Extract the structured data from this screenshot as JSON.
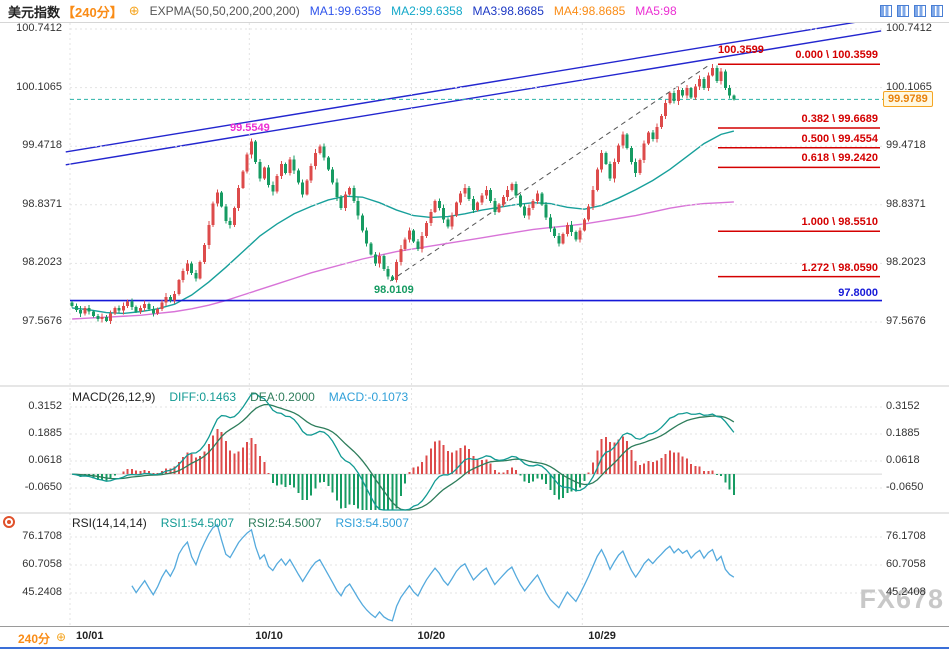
{
  "header": {
    "title": "美元指数",
    "period": "【240分】",
    "plus_icon": "⊕",
    "indicator": "EXPMA(50,50,200,200,200)",
    "ma_values": [
      {
        "label": "MA1:99.6358",
        "color": "#2f54eb"
      },
      {
        "label": "MA2:99.6358",
        "color": "#13a8c9"
      },
      {
        "label": "MA3:98.8685",
        "color": "#1d39c4"
      },
      {
        "label": "MA4:98.8685",
        "color": "#fa8c16"
      },
      {
        "label": "MA5:98",
        "color": "#eb2fd3"
      }
    ],
    "layout_icons": [
      "kline-view-icon",
      "multi-chart-icon",
      "grid-view-icon",
      "fullscreen-icon"
    ]
  },
  "macd_header": {
    "name": "MACD(26,12,9)",
    "diff": "DIFF:0.1463",
    "dea": "DEA:0.2000",
    "macd": "MACD:-0.1073"
  },
  "rsi_header": {
    "name": "RSI(14,14,14)",
    "rsi1": "RSI1:54.5007",
    "rsi2": "RSI2:54.5007",
    "rsi3": "RSI3:54.5007"
  },
  "footer": {
    "period": "240分",
    "plus": "⊕",
    "dates": [
      "10/01",
      "10/10",
      "10/20",
      "10/29"
    ],
    "tick_indices": [
      0,
      42,
      80,
      120
    ]
  },
  "watermark": "FX678",
  "price_badge": "99.9789",
  "annotations": {
    "peak1": "99.5549",
    "low": "98.0109",
    "peak2": "100.3599",
    "blue_level": "97.8000"
  },
  "axes": {
    "main_ticks": [
      "100.7412",
      "100.1065",
      "99.4718",
      "98.8371",
      "98.2023",
      "97.5676"
    ],
    "macd_ticks": [
      "0.3152",
      "0.1885",
      "0.0618",
      "-0.0650"
    ],
    "rsi_ticks": [
      "76.1708",
      "60.7058",
      "45.2408"
    ]
  },
  "colors": {
    "up": "#dd4b4b",
    "down": "#169b62",
    "ema_fast": "#18a09b",
    "ema_slow": "#d874d8",
    "trendline": "#2326cf",
    "fib": "#d40000",
    "support": "#1518d8",
    "last_price_line": "#2bb3a8",
    "accent_orange": "#fa8c16",
    "grid": "#e3e3e3",
    "macd_diff": "#129a93",
    "macd_dea": "#2e7d5b",
    "rsi_line": "#55aadd",
    "dashed_trend": "#555555"
  },
  "chart_data": [
    {
      "type": "candlestick",
      "symbol": "美元指数",
      "interval": "240分",
      "title": "美元指数 240分 K线",
      "x_axis_dates": [
        "10/01",
        "10/10",
        "10/20",
        "10/29"
      ],
      "y_ticks": [
        100.7412,
        100.1065,
        99.4718,
        98.8371,
        98.2023,
        97.5676
      ],
      "open0": 97.78,
      "closes": [
        97.74,
        97.7,
        97.66,
        97.72,
        97.68,
        97.63,
        97.6,
        97.62,
        97.58,
        97.66,
        97.72,
        97.69,
        97.74,
        97.79,
        97.73,
        97.68,
        97.72,
        97.76,
        97.71,
        97.66,
        97.71,
        97.78,
        97.84,
        97.8,
        97.87,
        98.02,
        98.12,
        98.2,
        98.1,
        98.04,
        98.22,
        98.4,
        98.62,
        98.85,
        98.97,
        98.82,
        98.66,
        98.62,
        98.8,
        99.02,
        99.2,
        99.38,
        99.52,
        99.3,
        99.12,
        99.24,
        99.05,
        98.98,
        99.15,
        99.28,
        99.18,
        99.33,
        99.21,
        99.08,
        98.95,
        99.1,
        99.26,
        99.4,
        99.47,
        99.35,
        99.22,
        99.08,
        98.92,
        98.8,
        98.95,
        99.02,
        98.88,
        98.72,
        98.56,
        98.42,
        98.3,
        98.2,
        98.28,
        98.14,
        98.06,
        98.02,
        98.22,
        98.36,
        98.46,
        98.56,
        98.44,
        98.36,
        98.5,
        98.64,
        98.76,
        98.88,
        98.8,
        98.68,
        98.6,
        98.72,
        98.86,
        98.96,
        99.02,
        98.9,
        98.78,
        98.86,
        98.94,
        99.0,
        98.88,
        98.76,
        98.84,
        98.92,
        99.0,
        99.06,
        98.94,
        98.82,
        98.72,
        98.8,
        98.88,
        98.96,
        98.84,
        98.7,
        98.58,
        98.5,
        98.42,
        98.52,
        98.62,
        98.54,
        98.46,
        98.56,
        98.68,
        98.82,
        99.0,
        99.22,
        99.4,
        99.28,
        99.12,
        99.3,
        99.48,
        99.6,
        99.45,
        99.3,
        99.18,
        99.32,
        99.5,
        99.62,
        99.55,
        99.68,
        99.8,
        99.94,
        100.05,
        99.96,
        100.08,
        100.02,
        100.1,
        100.0,
        100.12,
        100.2,
        100.1,
        100.24,
        100.32,
        100.18,
        100.28,
        100.1,
        100.02,
        99.9789
      ],
      "extremes": {
        "8": {
          "low": 97.5676
        },
        "42": {
          "high": 99.5549
        },
        "75": {
          "low": 98.0109
        },
        "150": {
          "high": 100.3599
        }
      },
      "ema_fast": [
        97.72,
        97.7,
        97.67,
        97.66,
        97.68,
        97.71,
        97.76,
        97.86,
        98.0,
        98.16,
        98.33,
        98.5,
        98.63,
        98.74,
        98.82,
        98.89,
        98.93,
        98.92,
        98.86,
        98.78,
        98.72,
        98.7,
        98.71,
        98.74,
        98.78,
        98.81,
        98.84,
        98.86,
        98.85,
        98.81,
        98.79,
        98.83,
        98.91,
        99.0,
        99.1,
        99.22,
        99.36,
        99.5,
        99.6,
        99.6358
      ],
      "ema_slow": [
        97.6,
        97.61,
        97.62,
        97.63,
        97.64,
        97.66,
        97.68,
        97.71,
        97.75,
        97.8,
        97.86,
        97.92,
        97.98,
        98.04,
        98.1,
        98.15,
        98.2,
        98.25,
        98.29,
        98.33,
        98.36,
        98.39,
        98.42,
        98.45,
        98.48,
        98.51,
        98.54,
        98.57,
        98.59,
        98.61,
        98.63,
        98.66,
        98.69,
        98.72,
        98.76,
        98.8,
        98.83,
        98.85,
        98.86,
        98.8685
      ],
      "last_price": 99.9789,
      "support_level": 97.8,
      "fib": [
        {
          "label": "0.000 \\ 100.3599",
          "price": 100.3599
        },
        {
          "label": "0.382 \\ 99.6689",
          "price": 99.6689
        },
        {
          "label": "0.500 \\ 99.4554",
          "price": 99.4554
        },
        {
          "label": "0.618 \\ 99.2420",
          "price": 99.242
        },
        {
          "label": "1.000 \\ 98.5510",
          "price": 98.551
        },
        {
          "label": "1.272 \\ 98.0590",
          "price": 98.059
        }
      ],
      "trendlines": [
        {
          "i1": -1,
          "p1": 99.27,
          "i2": 190,
          "p2": 100.72,
          "style": "solid"
        },
        {
          "i1": -1,
          "p1": 99.41,
          "i2": 190,
          "p2": 100.86,
          "style": "solid"
        },
        {
          "i1": 75,
          "p1": 98.0109,
          "i2": 150,
          "p2": 100.3599,
          "style": "dashed"
        }
      ]
    },
    {
      "type": "macd",
      "params": [
        26,
        12,
        9
      ],
      "diff": 0.1463,
      "dea": 0.2,
      "macd": -0.1073,
      "y_ticks": [
        0.3152,
        0.1885,
        0.0618,
        -0.065
      ],
      "derived_from": "closes"
    },
    {
      "type": "rsi",
      "params": [
        14,
        14,
        14
      ],
      "rsi1": 54.5007,
      "rsi2": 54.5007,
      "rsi3": 54.5007,
      "y_ticks": [
        76.1708,
        60.7058,
        45.2408
      ],
      "derived_from": "closes"
    }
  ]
}
